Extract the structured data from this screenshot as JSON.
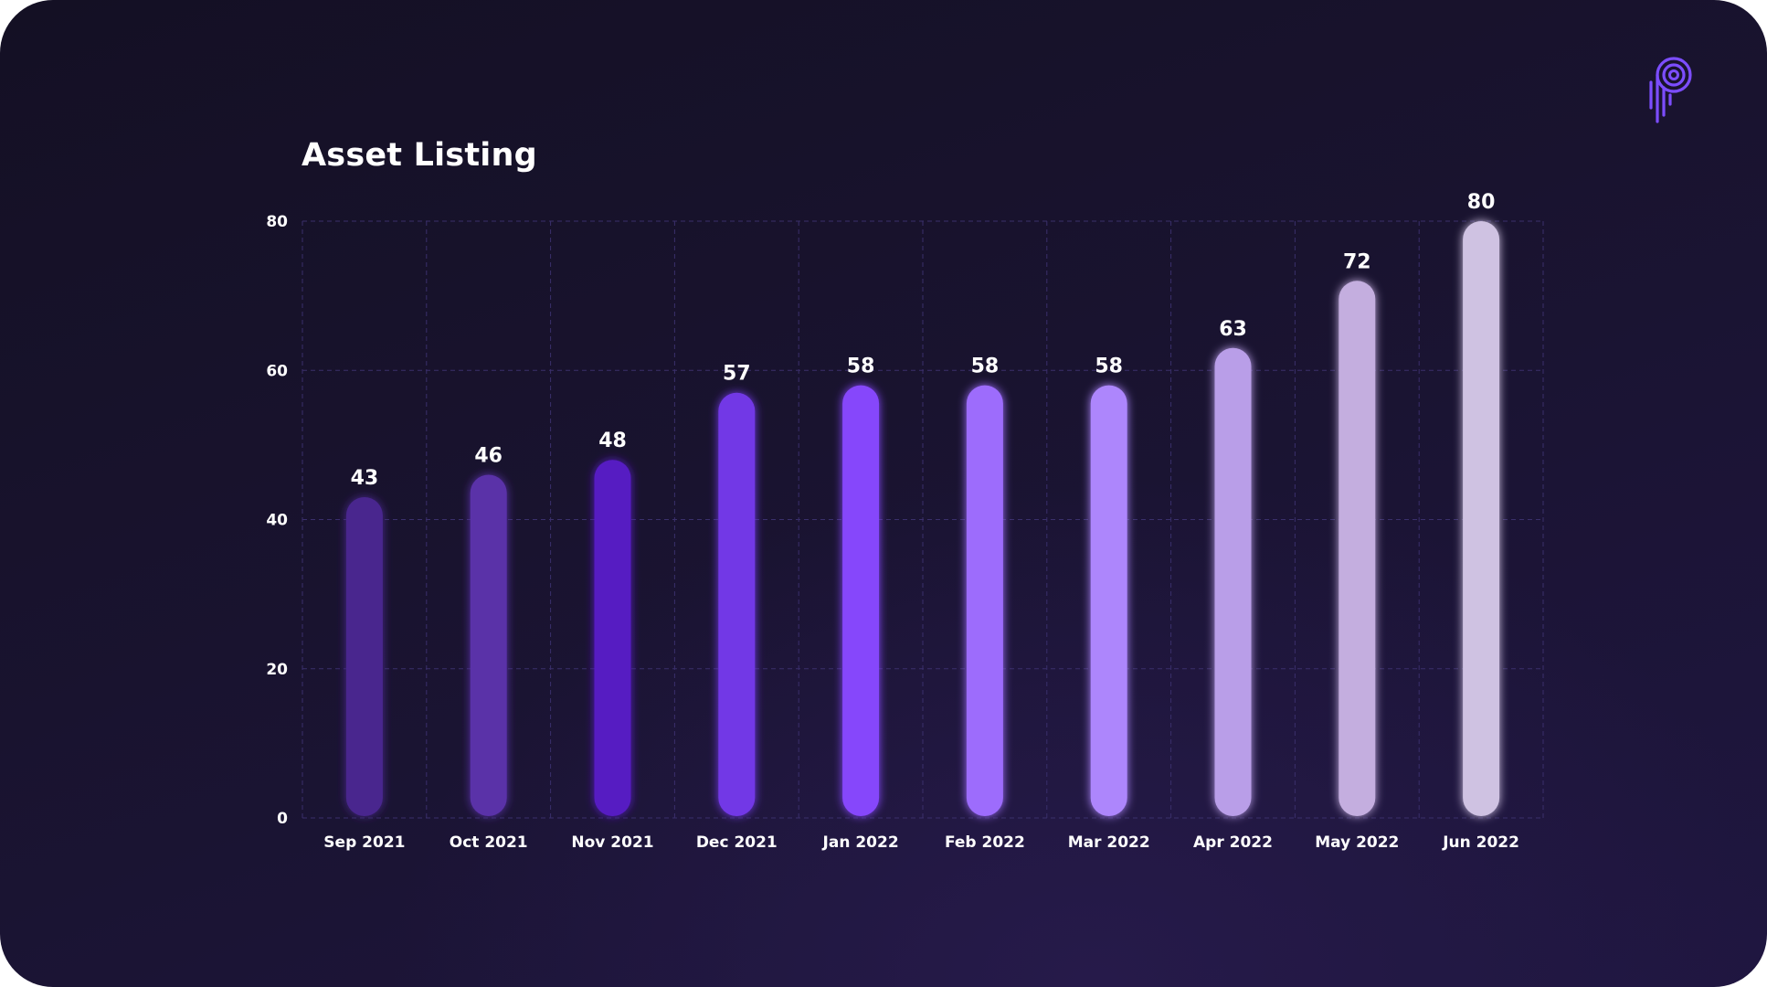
{
  "chart_data": {
    "type": "bar",
    "title": "Asset Listing",
    "categories": [
      "Sep 2021",
      "Oct 2021",
      "Nov 2021",
      "Dec 2021",
      "Jan 2022",
      "Feb 2022",
      "Mar 2022",
      "Apr 2022",
      "May 2022",
      "Jun 2022"
    ],
    "values": [
      43,
      46,
      48,
      57,
      58,
      58,
      58,
      63,
      72,
      80
    ],
    "bar_colors": [
      "#48278e",
      "#5a30a8",
      "#561ec2",
      "#7238e6",
      "#8646fb",
      "#9d6cfc",
      "#ad86fc",
      "#b99ee8",
      "#c4aedf",
      "#cfc2e2"
    ],
    "yticks": [
      0,
      20,
      40,
      60,
      80
    ],
    "ylim": [
      0,
      80
    ],
    "xlabel": "",
    "ylabel": "",
    "grid": true,
    "legend": false,
    "data_labels": true
  },
  "colors": {
    "grid": "#3a2f6b",
    "text": "#ffffff",
    "logo": "#7c4dff"
  },
  "icons": {
    "brand_logo": "p-fingerprint-logo"
  }
}
